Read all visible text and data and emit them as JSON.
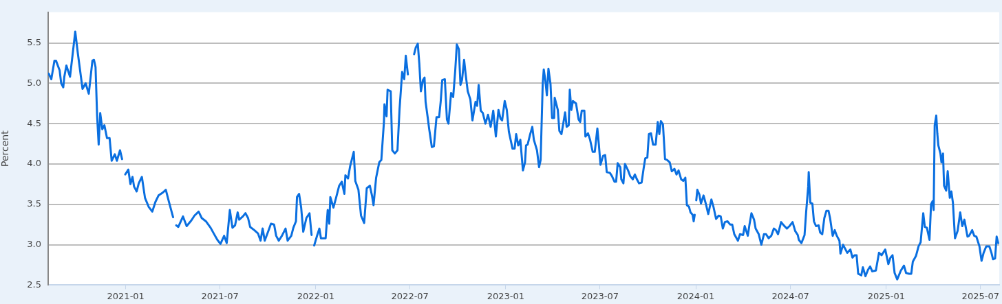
{
  "chart_data": {
    "type": "line",
    "ylabel": "Percent",
    "color": "#0a6fe0",
    "marker": "none",
    "line_style": "solid",
    "grid": "y",
    "legend": false,
    "xlim": [
      "2020-08-05",
      "2025-08-06"
    ],
    "xticks": [
      "2021-01",
      "2021-07",
      "2022-01",
      "2022-07",
      "2023-01",
      "2023-07",
      "2024-01",
      "2024-07",
      "2025-01",
      "2025-07"
    ],
    "ylim": [
      2.5,
      5.88
    ],
    "yticks": [
      {
        "value": 2.5,
        "label": "2.5"
      },
      {
        "value": 3,
        "label": "3.0"
      },
      {
        "value": 3.5,
        "label": "3.5"
      },
      {
        "value": 4,
        "label": "4.0"
      },
      {
        "value": 4.5,
        "label": "4.5"
      },
      {
        "value": 5,
        "label": "5.0"
      },
      {
        "value": 5.5,
        "label": "5.5"
      }
    ],
    "x": [
      "2020-08-06",
      "2020-08-11",
      "2020-08-17",
      "2020-08-20",
      "2020-08-27",
      "2020-08-30",
      "2020-09-03",
      "2020-09-05",
      "2020-09-09",
      "2020-09-16",
      "2020-09-23",
      "2020-09-26",
      "2020-10-01",
      "2020-10-10",
      "2020-10-16",
      "2020-10-22",
      "2020-10-29",
      "2020-11-01",
      "2020-11-04",
      "2020-11-07",
      "2020-11-10",
      "2020-11-13",
      "2020-11-17",
      "2020-11-21",
      "2020-11-26",
      "2020-12-01",
      "2020-12-05",
      "2020-12-11",
      "2020-12-15",
      "2020-12-21",
      "2020-12-25",
      "2020-12-28",
      "2020-12-31",
      "2021-01-06",
      "2021-01-10",
      "2021-01-14",
      "2021-01-17",
      "2021-01-22",
      "2021-01-26",
      "2021-02-01",
      "2021-02-07",
      "2021-02-14",
      "2021-02-21",
      "2021-02-27",
      "2021-03-05",
      "2021-03-12",
      "2021-03-19",
      "2021-03-25",
      "2021-04-02",
      "2021-04-04",
      "2021-04-08",
      "2021-04-12",
      "2021-04-21",
      "2021-04-28",
      "2021-05-07",
      "2021-05-13",
      "2021-05-21",
      "2021-05-27",
      "2021-06-04",
      "2021-06-13",
      "2021-06-19",
      "2021-06-26",
      "2021-07-02",
      "2021-07-09",
      "2021-07-14",
      "2021-07-20",
      "2021-07-25",
      "2021-07-30",
      "2021-08-04",
      "2021-08-07",
      "2021-08-14",
      "2021-08-19",
      "2021-08-24",
      "2021-08-28",
      "2021-09-05",
      "2021-09-12",
      "2021-09-17",
      "2021-09-21",
      "2021-09-25",
      "2021-10-02",
      "2021-10-07",
      "2021-10-13",
      "2021-10-17",
      "2021-10-22",
      "2021-10-28",
      "2021-11-04",
      "2021-11-08",
      "2021-11-15",
      "2021-11-19",
      "2021-11-24",
      "2021-11-26",
      "2021-11-30",
      "2021-12-04",
      "2021-12-08",
      "2021-12-14",
      "2021-12-20",
      "2021-12-24",
      "2021-12-27",
      "2021-12-29",
      "2022-01-03",
      "2022-01-08",
      "2022-01-11",
      "2022-01-20",
      "2022-01-24",
      "2022-01-27",
      "2022-01-29",
      "2022-02-04",
      "2022-02-09",
      "2022-02-15",
      "2022-02-20",
      "2022-02-25",
      "2022-02-27",
      "2022-03-04",
      "2022-03-08",
      "2022-03-15",
      "2022-03-18",
      "2022-03-24",
      "2022-03-29",
      "2022-04-04",
      "2022-04-09",
      "2022-04-15",
      "2022-04-19",
      "2022-04-22",
      "2022-04-27",
      "2022-05-03",
      "2022-05-07",
      "2022-05-12",
      "2022-05-13",
      "2022-05-17",
      "2022-05-19",
      "2022-05-25",
      "2022-05-28",
      "2022-06-02",
      "2022-06-07",
      "2022-06-11",
      "2022-06-16",
      "2022-06-20",
      "2022-06-23",
      "2022-06-27",
      "2022-06-30",
      "2022-07-06",
      "2022-07-09",
      "2022-07-12",
      "2022-07-16",
      "2022-07-19",
      "2022-07-22",
      "2022-07-26",
      "2022-07-29",
      "2022-07-31",
      "2022-08-04",
      "2022-08-07",
      "2022-08-12",
      "2022-08-16",
      "2022-08-21",
      "2022-08-26",
      "2022-08-29",
      "2022-09-01",
      "2022-09-06",
      "2022-09-10",
      "2022-09-13",
      "2022-09-18",
      "2022-09-22",
      "2022-09-26",
      "2022-09-29",
      "2022-10-03",
      "2022-10-06",
      "2022-10-09",
      "2022-10-13",
      "2022-10-16",
      "2022-10-20",
      "2022-10-25",
      "2022-10-29",
      "2022-11-04",
      "2022-11-07",
      "2022-11-10",
      "2022-11-14",
      "2022-11-18",
      "2022-11-23",
      "2022-11-28",
      "2022-12-03",
      "2022-12-08",
      "2022-12-13",
      "2022-12-18",
      "2022-12-22",
      "2022-12-25",
      "2022-12-30",
      "2023-01-03",
      "2023-01-07",
      "2023-01-14",
      "2023-01-18",
      "2023-01-21",
      "2023-01-25",
      "2023-01-29",
      "2023-02-03",
      "2023-02-07",
      "2023-02-09",
      "2023-02-12",
      "2023-02-17",
      "2023-02-21",
      "2023-02-24",
      "2023-03-02",
      "2023-03-06",
      "2023-03-09",
      "2023-03-13",
      "2023-03-15",
      "2023-03-18",
      "2023-03-21",
      "2023-03-24",
      "2023-03-28",
      "2023-03-31",
      "2023-04-04",
      "2023-04-05",
      "2023-04-11",
      "2023-04-14",
      "2023-04-18",
      "2023-04-22",
      "2023-04-25",
      "2023-04-28",
      "2023-05-02",
      "2023-05-04",
      "2023-05-07",
      "2023-05-10",
      "2023-05-16",
      "2023-05-21",
      "2023-05-24",
      "2023-05-27",
      "2023-06-01",
      "2023-06-03",
      "2023-06-08",
      "2023-06-12",
      "2023-06-17",
      "2023-06-21",
      "2023-06-26",
      "2023-06-29",
      "2023-07-02",
      "2023-07-07",
      "2023-07-11",
      "2023-07-14",
      "2023-07-20",
      "2023-07-24",
      "2023-07-29",
      "2023-08-01",
      "2023-08-04",
      "2023-08-09",
      "2023-08-11",
      "2023-08-15",
      "2023-08-18",
      "2023-08-24",
      "2023-08-28",
      "2023-09-02",
      "2023-09-06",
      "2023-09-10",
      "2023-09-14",
      "2023-09-19",
      "2023-09-23",
      "2023-09-26",
      "2023-09-30",
      "2023-10-03",
      "2023-10-07",
      "2023-10-11",
      "2023-10-16",
      "2023-10-20",
      "2023-10-23",
      "2023-10-26",
      "2023-10-30",
      "2023-11-03",
      "2023-11-07",
      "2023-11-12",
      "2023-11-16",
      "2023-11-21",
      "2023-11-25",
      "2023-11-29",
      "2023-12-04",
      "2023-12-08",
      "2023-12-12",
      "2023-12-15",
      "2023-12-19",
      "2023-12-22",
      "2023-12-26",
      "2023-12-28",
      "2023-12-30",
      "2024-01-01",
      "2024-01-02",
      "2024-01-04",
      "2024-01-08",
      "2024-01-11",
      "2024-01-16",
      "2024-01-21",
      "2024-01-25",
      "2024-01-31",
      "2024-02-04",
      "2024-02-09",
      "2024-02-14",
      "2024-02-18",
      "2024-02-22",
      "2024-02-26",
      "2024-03-02",
      "2024-03-07",
      "2024-03-11",
      "2024-03-15",
      "2024-03-22",
      "2024-03-26",
      "2024-04-01",
      "2024-04-04",
      "2024-04-10",
      "2024-04-13",
      "2024-04-17",
      "2024-04-22",
      "2024-04-25",
      "2024-05-01",
      "2024-05-06",
      "2024-05-11",
      "2024-05-15",
      "2024-05-20",
      "2024-05-25",
      "2024-05-30",
      "2024-06-03",
      "2024-06-07",
      "2024-06-13",
      "2024-06-18",
      "2024-06-24",
      "2024-06-29",
      "2024-07-05",
      "2024-07-10",
      "2024-07-15",
      "2024-07-17",
      "2024-07-22",
      "2024-07-28",
      "2024-07-31",
      "2024-08-04",
      "2024-08-05",
      "2024-08-08",
      "2024-08-12",
      "2024-08-15",
      "2024-08-19",
      "2024-08-24",
      "2024-08-27",
      "2024-08-31",
      "2024-09-04",
      "2024-09-08",
      "2024-09-12",
      "2024-09-15",
      "2024-09-20",
      "2024-09-24",
      "2024-09-28",
      "2024-10-03",
      "2024-10-05",
      "2024-10-10",
      "2024-10-18",
      "2024-10-24",
      "2024-10-28",
      "2024-11-01",
      "2024-11-05",
      "2024-11-08",
      "2024-11-14",
      "2024-11-17",
      "2024-11-22",
      "2024-11-27",
      "2024-12-01",
      "2024-12-05",
      "2024-12-12",
      "2024-12-18",
      "2024-12-23",
      "2024-12-30",
      "2025-01-05",
      "2025-01-09",
      "2025-01-13",
      "2025-01-17",
      "2025-01-22",
      "2025-01-29",
      "2025-02-04",
      "2025-02-08",
      "2025-02-14",
      "2025-02-18",
      "2025-02-21",
      "2025-02-27",
      "2025-03-04",
      "2025-03-08",
      "2025-03-13",
      "2025-03-16",
      "2025-03-20",
      "2025-03-25",
      "2025-03-28",
      "2025-03-31",
      "2025-04-02",
      "2025-04-04",
      "2025-04-07",
      "2025-04-09",
      "2025-04-11",
      "2025-04-15",
      "2025-04-17",
      "2025-04-20",
      "2025-04-22",
      "2025-04-26",
      "2025-04-29",
      "2025-05-03",
      "2025-05-06",
      "2025-05-09",
      "2025-05-13",
      "2025-05-18",
      "2025-05-23",
      "2025-05-27",
      "2025-05-31",
      "2025-06-06",
      "2025-06-09",
      "2025-06-15",
      "2025-06-19",
      "2025-06-23",
      "2025-06-29",
      "2025-07-03",
      "2025-07-07",
      "2025-07-12",
      "2025-07-18",
      "2025-07-22",
      "2025-07-25",
      "2025-07-29",
      "2025-08-01",
      "2025-08-04"
    ],
    "values": [
      5.12,
      5.05,
      5.28,
      5.28,
      5.16,
      5.0,
      4.95,
      5.08,
      5.22,
      5.08,
      5.47,
      5.64,
      5.37,
      4.93,
      5.0,
      4.87,
      5.28,
      5.29,
      5.2,
      4.6,
      4.24,
      4.63,
      4.43,
      4.48,
      4.32,
      4.32,
      4.04,
      4.12,
      4.04,
      4.17,
      4.06,
      null,
      3.87,
      3.93,
      3.75,
      3.84,
      3.72,
      3.66,
      3.76,
      3.84,
      3.58,
      3.47,
      3.41,
      3.53,
      3.61,
      3.64,
      3.68,
      3.53,
      3.34,
      null,
      3.24,
      3.22,
      3.35,
      3.23,
      3.3,
      3.36,
      3.41,
      3.33,
      3.29,
      3.21,
      3.14,
      3.06,
      3.01,
      3.11,
      3.02,
      3.43,
      3.21,
      3.24,
      3.4,
      3.31,
      3.35,
      3.39,
      3.33,
      3.22,
      3.18,
      3.14,
      3.05,
      3.2,
      3.05,
      3.17,
      3.26,
      3.25,
      3.11,
      3.05,
      3.11,
      3.2,
      3.05,
      3.11,
      3.21,
      3.29,
      3.59,
      3.63,
      3.46,
      3.16,
      3.33,
      3.39,
      3.12,
      null,
      2.99,
      3.1,
      3.2,
      3.08,
      3.08,
      3.43,
      3.26,
      3.59,
      3.46,
      3.58,
      3.73,
      3.78,
      3.63,
      3.86,
      3.82,
      3.97,
      4.15,
      3.79,
      3.68,
      3.36,
      3.27,
      3.7,
      3.73,
      3.61,
      3.49,
      3.83,
      4.02,
      4.05,
      4.52,
      4.74,
      4.59,
      4.92,
      4.9,
      4.17,
      4.13,
      4.17,
      4.68,
      5.14,
      5.05,
      5.34,
      5.11,
      null,
      null,
      5.36,
      5.44,
      5.49,
      5.24,
      4.9,
      5.04,
      5.07,
      4.77,
      4.58,
      4.43,
      4.21,
      4.22,
      4.58,
      4.58,
      4.77,
      5.04,
      5.05,
      4.55,
      4.5,
      4.88,
      4.83,
      5.16,
      5.48,
      5.42,
      4.98,
      5.04,
      5.29,
      5.11,
      4.9,
      4.8,
      4.54,
      4.77,
      4.72,
      4.98,
      4.66,
      4.63,
      4.5,
      4.61,
      4.46,
      4.66,
      4.34,
      4.67,
      4.56,
      4.54,
      4.78,
      4.67,
      4.4,
      4.19,
      4.19,
      4.37,
      4.23,
      4.3,
      3.92,
      4.02,
      4.23,
      4.24,
      4.37,
      4.46,
      4.3,
      4.17,
      3.96,
      4.05,
      4.99,
      5.17,
      5.04,
      4.85,
      5.18,
      4.99,
      4.57,
      4.57,
      4.82,
      4.67,
      4.41,
      4.37,
      4.52,
      4.64,
      4.46,
      4.48,
      4.92,
      4.67,
      4.78,
      4.75,
      4.55,
      4.52,
      4.66,
      4.66,
      4.34,
      4.38,
      4.3,
      4.15,
      4.15,
      4.44,
      4.23,
      3.99,
      4.1,
      4.11,
      3.9,
      3.89,
      3.85,
      3.78,
      3.78,
      4.01,
      3.96,
      3.81,
      3.76,
      4.0,
      3.92,
      3.85,
      3.81,
      3.87,
      3.81,
      3.76,
      3.77,
      3.95,
      4.07,
      4.08,
      4.37,
      4.38,
      4.24,
      4.24,
      4.52,
      4.37,
      4.53,
      4.49,
      4.06,
      4.05,
      4.02,
      3.91,
      3.94,
      3.87,
      3.92,
      3.81,
      3.79,
      3.83,
      3.49,
      3.47,
      3.4,
      3.37,
      3.29,
      3.37,
      null,
      3.55,
      3.68,
      3.62,
      3.51,
      3.61,
      3.49,
      3.38,
      3.56,
      3.47,
      3.32,
      3.36,
      3.35,
      3.2,
      3.28,
      3.29,
      3.25,
      3.25,
      3.13,
      3.05,
      3.13,
      3.12,
      3.23,
      3.11,
      3.24,
      3.39,
      3.31,
      3.2,
      3.13,
      3.0,
      3.13,
      3.13,
      3.08,
      3.11,
      3.2,
      3.18,
      3.13,
      3.28,
      3.24,
      3.2,
      3.23,
      3.28,
      3.17,
      3.12,
      3.06,
      3.02,
      3.12,
      3.4,
      3.72,
      3.9,
      3.52,
      3.51,
      3.29,
      3.23,
      3.24,
      3.15,
      3.13,
      3.33,
      3.42,
      3.42,
      3.33,
      3.11,
      3.18,
      3.11,
      3.05,
      2.89,
      3.0,
      2.9,
      2.94,
      2.84,
      2.87,
      2.87,
      2.64,
      2.62,
      2.72,
      2.61,
      2.69,
      2.73,
      2.67,
      2.68,
      2.9,
      2.87,
      2.94,
      2.76,
      2.84,
      2.87,
      2.65,
      2.57,
      2.68,
      2.74,
      2.65,
      2.64,
      2.64,
      2.79,
      2.86,
      2.98,
      3.03,
      3.39,
      3.22,
      3.21,
      3.06,
      3.5,
      3.54,
      3.43,
      4.48,
      4.6,
      4.38,
      4.23,
      4.13,
      4.02,
      4.13,
      3.73,
      3.67,
      3.91,
      3.58,
      3.66,
      3.52,
      3.08,
      3.17,
      3.4,
      3.23,
      3.31,
      3.1,
      3.11,
      3.18,
      3.11,
      3.1,
      2.98,
      2.8,
      2.9,
      2.98,
      2.98,
      2.9,
      2.82,
      2.83,
      3.1,
      3.02
    ]
  }
}
